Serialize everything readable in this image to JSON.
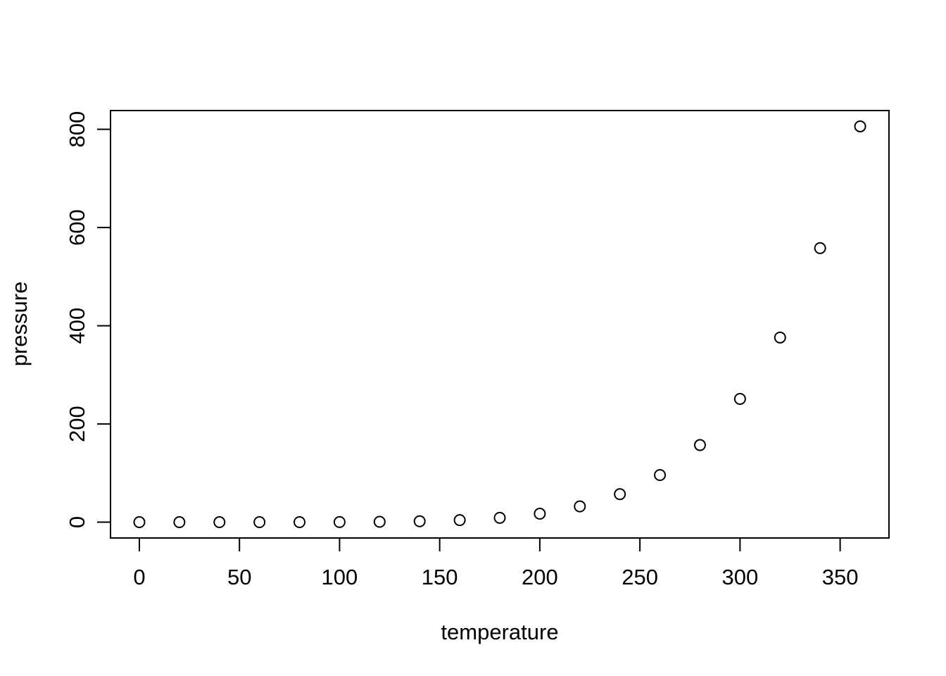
{
  "chart_data": {
    "type": "scatter",
    "title": "",
    "xlabel": "temperature",
    "ylabel": "pressure",
    "x": [
      0,
      20,
      40,
      60,
      80,
      100,
      120,
      140,
      160,
      180,
      200,
      220,
      240,
      260,
      280,
      300,
      320,
      340,
      360
    ],
    "y": [
      0.0002,
      0.0012,
      0.006,
      0.03,
      0.09,
      0.27,
      0.75,
      1.85,
      4.2,
      8.8,
      17.3,
      32.1,
      57.0,
      96.0,
      157.0,
      251.0,
      376.0,
      558.0,
      806.0
    ],
    "x_ticks": [
      0,
      50,
      100,
      150,
      200,
      250,
      300,
      350
    ],
    "y_ticks": [
      0,
      200,
      400,
      600,
      800
    ],
    "xlim": [
      -14.4,
      374.4
    ],
    "ylim": [
      -32.2,
      838.2
    ],
    "grid": false,
    "legend": null,
    "marker": "open-circle",
    "marker_radius": 7.5,
    "colors": {
      "background": "#ffffff",
      "stroke": "#000000"
    }
  }
}
